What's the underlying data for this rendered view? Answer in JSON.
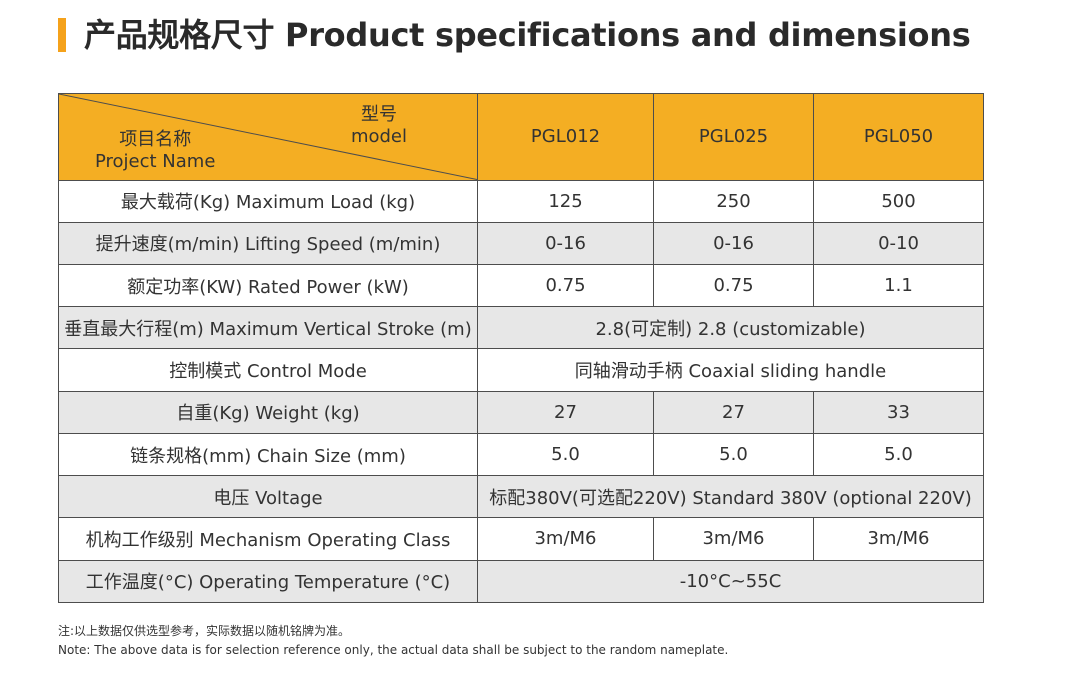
{
  "title": "产品规格尺寸 Product specifications and dimensions",
  "accent_color": "#f5a21b",
  "header": {
    "model_cn": "型号",
    "model_en": "model",
    "project_cn": "项目名称",
    "project_en": "Project Name",
    "models": [
      "PGL012",
      "PGL025",
      "PGL050"
    ]
  },
  "rows": [
    {
      "label": "最大载荷(Kg)  Maximum Load (kg)",
      "values": [
        "125",
        "250",
        "500"
      ]
    },
    {
      "label": "提升速度(m/min) Lifting Speed (m/min)",
      "values": [
        "0-16",
        "0-16",
        "0-10"
      ]
    },
    {
      "label": "额定功率(KW)  Rated Power (kW)",
      "values": [
        "0.75",
        "0.75",
        "1.1"
      ]
    },
    {
      "label": "垂直最大行程(m) Maximum Vertical Stroke (m)",
      "merged": "2.8(可定制) 2.8 (customizable)"
    },
    {
      "label": "控制模式 Control Mode",
      "merged": "同轴滑动手柄 Coaxial sliding handle"
    },
    {
      "label": "自重(Kg)  Weight (kg)",
      "values": [
        "27",
        "27",
        "33"
      ]
    },
    {
      "label": "链条规格(mm) Chain Size (mm)",
      "values": [
        "5.0",
        "5.0",
        "5.0"
      ]
    },
    {
      "label": "电压 Voltage",
      "merged": "标配380V(可选配220V)  Standard 380V (optional 220V)"
    },
    {
      "label": "机构工作级别 Mechanism Operating Class",
      "values": [
        "3m/M6",
        "3m/M6",
        "3m/M6"
      ]
    },
    {
      "label": "工作温度(°C) Operating Temperature (°C)",
      "merged": "-10°C~55C"
    }
  ],
  "note": {
    "cn": "注:以上数据仅供选型参考，实际数据以随机铭牌为准。",
    "en": "Note: The above data is for selection reference only, the actual data shall be subject to the random nameplate."
  }
}
